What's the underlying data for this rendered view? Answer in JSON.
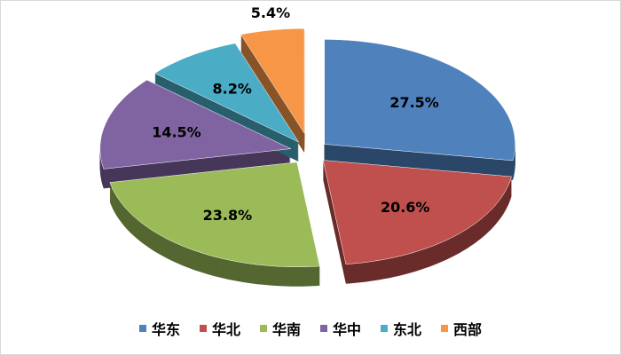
{
  "chart_data": {
    "type": "pie",
    "style": "3d-exploded",
    "categories": [
      "华东",
      "华北",
      "华南",
      "华中",
      "东北",
      "西部"
    ],
    "values": [
      27.5,
      20.6,
      23.8,
      14.5,
      8.2,
      5.4
    ],
    "data_labels": [
      "27.5%",
      "20.6%",
      "23.8%",
      "14.5%",
      "8.2%",
      "5.4%"
    ],
    "colors": [
      "#4F81BD",
      "#C0504D",
      "#9BBB59",
      "#8064A2",
      "#4BACC6",
      "#F79646"
    ],
    "legend_position": "bottom",
    "title": ""
  }
}
